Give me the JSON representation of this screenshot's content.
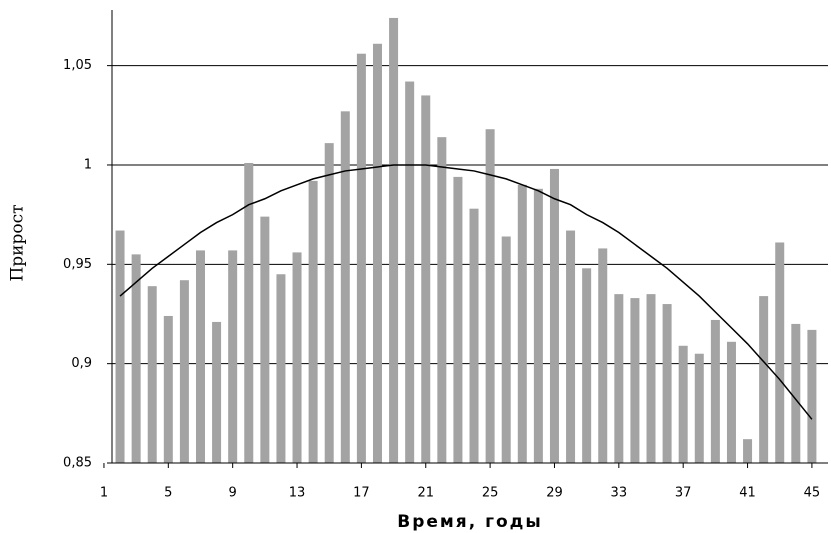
{
  "chart_data": {
    "type": "bar",
    "x_label": "Время, годы",
    "y_label": "Прирост",
    "x": [
      2,
      3,
      4,
      5,
      6,
      7,
      8,
      9,
      10,
      11,
      12,
      13,
      14,
      15,
      16,
      17,
      18,
      19,
      20,
      21,
      22,
      23,
      24,
      25,
      26,
      27,
      28,
      29,
      30,
      31,
      32,
      33,
      34,
      35,
      36,
      37,
      38,
      39,
      40,
      41,
      42,
      43,
      44,
      45
    ],
    "series": [
      {
        "type": "bar",
        "color": "#a3a3a3",
        "values": [
          0.967,
          0.955,
          0.939,
          0.924,
          0.942,
          0.957,
          0.921,
          0.957,
          1.001,
          0.974,
          0.945,
          0.956,
          0.992,
          1.011,
          1.027,
          1.056,
          1.061,
          1.074,
          1.042,
          1.035,
          1.014,
          0.994,
          0.978,
          1.018,
          0.964,
          0.99,
          0.988,
          0.998,
          0.967,
          0.948,
          0.958,
          0.935,
          0.933,
          0.935,
          0.93,
          0.909,
          0.905,
          0.922,
          0.911,
          0.862,
          0.934,
          0.961,
          0.92,
          0.917
        ]
      },
      {
        "type": "line",
        "color": "#000000",
        "values": [
          0.934,
          0.941,
          0.948,
          0.954,
          0.96,
          0.966,
          0.971,
          0.975,
          0.98,
          0.983,
          0.987,
          0.99,
          0.993,
          0.995,
          0.997,
          0.998,
          0.999,
          1.0,
          1.0,
          1.0,
          0.999,
          0.998,
          0.997,
          0.995,
          0.993,
          0.99,
          0.987,
          0.983,
          0.98,
          0.975,
          0.971,
          0.966,
          0.96,
          0.954,
          0.948,
          0.941,
          0.934,
          0.926,
          0.918,
          0.91,
          0.901,
          0.892,
          0.882,
          0.872
        ]
      }
    ],
    "xlim": [
      1.5,
      46
    ],
    "xticks": [
      1,
      5,
      9,
      13,
      17,
      21,
      25,
      29,
      33,
      37,
      41,
      45
    ],
    "ylim": [
      0.85,
      1.078
    ],
    "yticks": [
      {
        "value": 0.85,
        "label": "0,85"
      },
      {
        "value": 0.9,
        "label": "0,9"
      },
      {
        "value": 0.95,
        "label": "0,95"
      },
      1,
      {
        "value": 1.05,
        "label": "1,05"
      }
    ],
    "grid": true
  }
}
